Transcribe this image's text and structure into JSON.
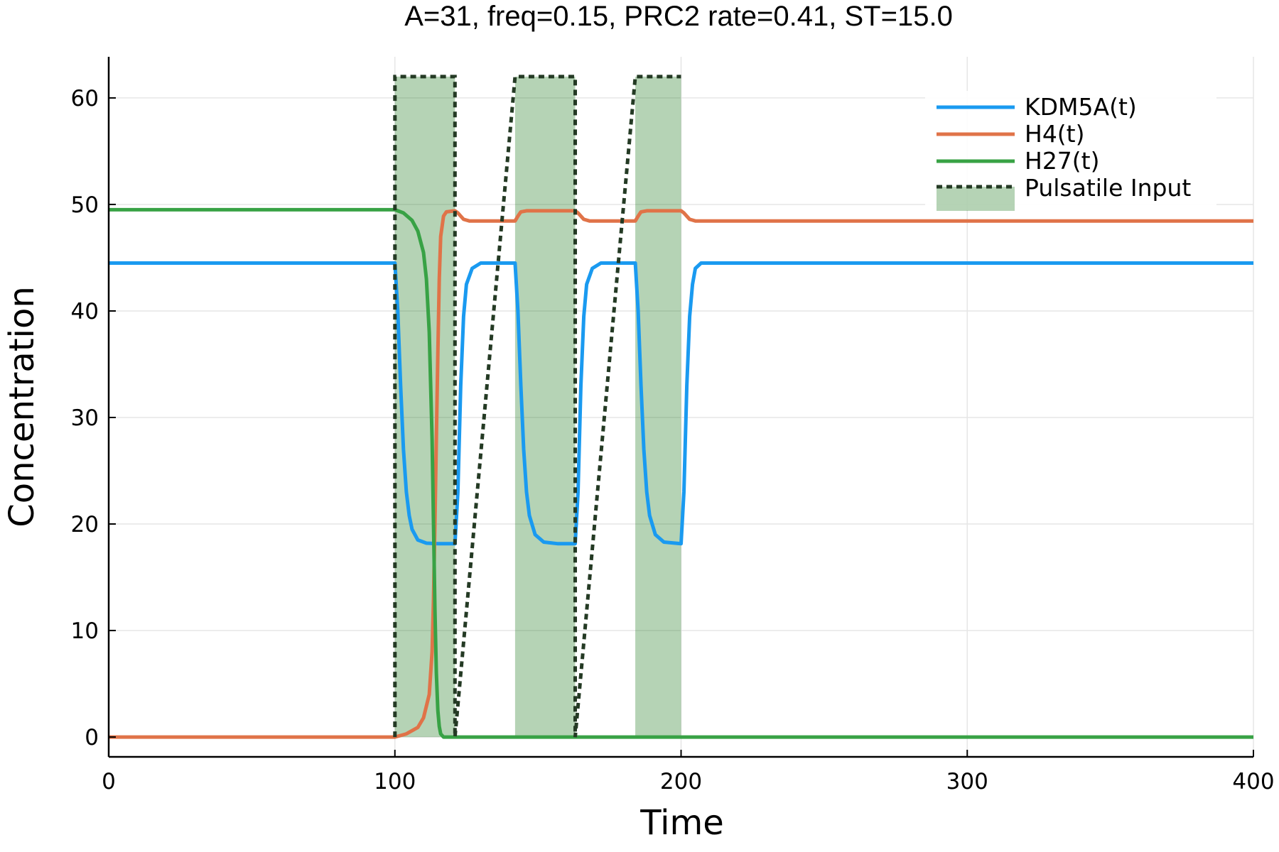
{
  "chart_data": {
    "type": "line",
    "title": "A=31, freq=0.15, PRC2 rate=0.41, ST=15.0",
    "xlabel": "Time",
    "ylabel": "Concentration",
    "xlim": [
      0,
      400
    ],
    "ylim": [
      -1.86,
      63.86
    ],
    "xticks": [
      0,
      100,
      200,
      300,
      400
    ],
    "yticks": [
      0,
      10,
      20,
      30,
      40,
      50,
      60
    ],
    "grid": true,
    "legend_position": "top-right",
    "legend": [
      "KDM5A(t)",
      "H4(t)",
      "H27(t)",
      "Pulsatile Input"
    ],
    "pulses": {
      "name": "Pulsatile Input",
      "amplitude": 62,
      "intervals": [
        [
          100,
          121
        ],
        [
          142,
          163
        ],
        [
          184,
          200
        ]
      ],
      "color": "#1f7a1f",
      "line_color": "#243a24"
    },
    "series": [
      {
        "name": "KDM5A(t)",
        "color": "#1a9af0",
        "x": [
          0,
          100,
          101,
          102,
          103,
          104,
          105,
          106,
          108,
          111,
          115,
          121,
          122,
          123,
          124,
          125,
          127,
          130,
          135,
          142,
          143,
          144,
          145,
          146,
          147,
          149,
          152,
          157,
          163,
          164,
          165,
          166,
          167,
          169,
          172,
          177,
          184,
          185,
          186,
          187,
          188,
          189,
          191,
          194,
          200,
          201,
          202,
          203,
          204,
          205,
          207,
          210,
          215,
          400
        ],
        "y": [
          44.5,
          44.5,
          40,
          33,
          27,
          23,
          20.8,
          19.5,
          18.5,
          18.2,
          18.15,
          18.15,
          23,
          33,
          39.5,
          42.5,
          44,
          44.5,
          44.5,
          44.5,
          40,
          33,
          27,
          23,
          20.8,
          19,
          18.3,
          18.15,
          18.15,
          23,
          33,
          39.5,
          42.5,
          44,
          44.5,
          44.5,
          44.5,
          40,
          33,
          27,
          23,
          20.8,
          19,
          18.3,
          18.15,
          23,
          33,
          39.5,
          42.5,
          44,
          44.5,
          44.5,
          44.5,
          44.5
        ]
      },
      {
        "name": "H4(t)",
        "color": "#e07348",
        "x": [
          0,
          100,
          104,
          108,
          110,
          112,
          113,
          113.5,
          114,
          114.5,
          115,
          115.5,
          116,
          117,
          118,
          121,
          122,
          124,
          126,
          128,
          142,
          143,
          144,
          146,
          163,
          164,
          166,
          168,
          170,
          184,
          185,
          186,
          188,
          200,
          201,
          203,
          205,
          207,
          400
        ],
        "y": [
          0,
          0,
          0.3,
          0.9,
          1.8,
          4,
          8,
          13,
          20,
          28,
          36,
          43,
          47,
          48.9,
          49.3,
          49.4,
          49.2,
          48.6,
          48.45,
          48.45,
          48.45,
          48.9,
          49.3,
          49.4,
          49.4,
          49.2,
          48.6,
          48.45,
          48.45,
          48.45,
          48.9,
          49.3,
          49.4,
          49.4,
          49.2,
          48.6,
          48.45,
          48.45,
          48.45
        ]
      },
      {
        "name": "H27(t)",
        "color": "#38a245",
        "x": [
          0,
          100,
          103,
          106,
          108,
          110,
          111,
          112,
          113,
          113.5,
          114,
          114.5,
          115,
          115.5,
          116,
          117,
          118,
          121,
          400
        ],
        "y": [
          49.5,
          49.5,
          49.2,
          48.5,
          47.5,
          45.5,
          43,
          38,
          28,
          20,
          12,
          6,
          2.5,
          1,
          0.3,
          0,
          0,
          0,
          0
        ]
      }
    ]
  }
}
